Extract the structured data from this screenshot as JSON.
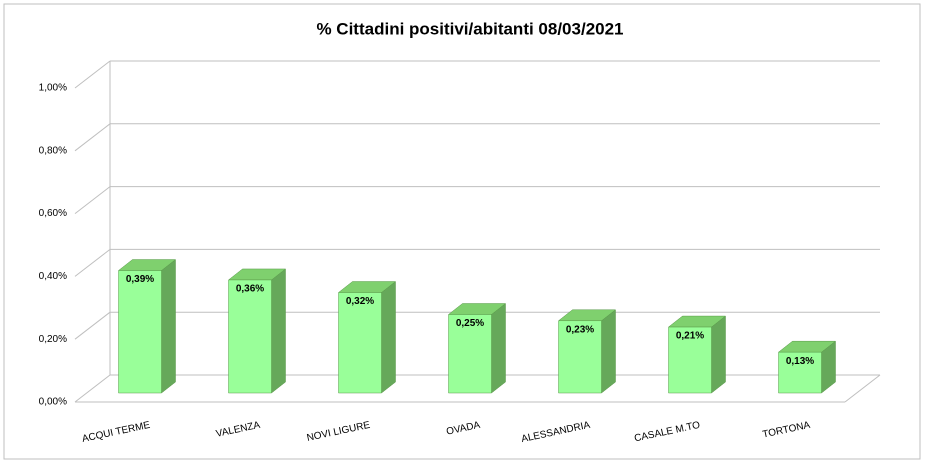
{
  "chart_data": {
    "type": "bar3d",
    "title": "% Cittadini positivi/abitanti 08/03/2021",
    "categories": [
      "ACQUI TERME",
      "VALENZA",
      "NOVI LIGURE",
      "OVADA",
      "ALESSANDRIA",
      "CASALE M.TO",
      "TORTONA"
    ],
    "values": [
      0.39,
      0.36,
      0.32,
      0.25,
      0.23,
      0.21,
      0.13
    ],
    "value_labels": [
      "0,39%",
      "0,36%",
      "0,32%",
      "0,25%",
      "0,23%",
      "0,21%",
      "0,13%"
    ],
    "color": "#99ff99",
    "ylim": [
      0,
      1
    ],
    "yticks": [
      {
        "value": 0,
        "label": "0,00%"
      },
      {
        "value": 0.2,
        "label": "0,20%"
      },
      {
        "value": 0.4,
        "label": "0,40%"
      },
      {
        "value": 0.6,
        "label": "0,60%"
      },
      {
        "value": 0.8,
        "label": "0,80%"
      },
      {
        "value": 1,
        "label": "1,00%"
      }
    ],
    "grid": true
  }
}
